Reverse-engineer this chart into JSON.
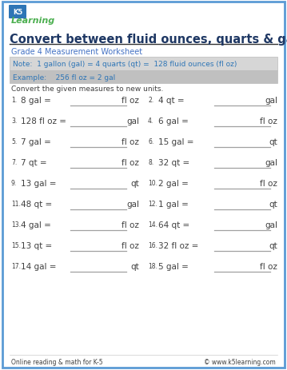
{
  "title": "Convert between fluid ounces, quarts & gallons",
  "subtitle": "Grade 4 Measurement Worksheet",
  "note": "Note:  1 gallon (gal) = 4 quarts (qt) =  128 fluid ounces (fl oz)",
  "example": "Example:    256 fl oz = 2 gal",
  "instruction": "Convert the given measures to new units.",
  "problems": [
    {
      "num": "1.",
      "left": "8 gal =",
      "right_unit": "fl oz"
    },
    {
      "num": "2.",
      "left": "4 qt =",
      "right_unit": "gal"
    },
    {
      "num": "3.",
      "left": "128 fl oz =",
      "right_unit": "gal"
    },
    {
      "num": "4.",
      "left": "6 gal =",
      "right_unit": "fl oz"
    },
    {
      "num": "5.",
      "left": "7 gal =",
      "right_unit": "fl oz"
    },
    {
      "num": "6.",
      "left": "15 gal =",
      "right_unit": "qt"
    },
    {
      "num": "7.",
      "left": "7 qt =",
      "right_unit": "fl oz"
    },
    {
      "num": "8.",
      "left": "32 qt =",
      "right_unit": "gal"
    },
    {
      "num": "9.",
      "left": "13 gal =",
      "right_unit": "qt"
    },
    {
      "num": "10.",
      "left": "2 gal =",
      "right_unit": "fl oz"
    },
    {
      "num": "11.",
      "left": "48 qt =",
      "right_unit": "gal"
    },
    {
      "num": "12.",
      "left": "1 gal =",
      "right_unit": "qt"
    },
    {
      "num": "13.",
      "left": "4 gal =",
      "right_unit": "fl oz"
    },
    {
      "num": "14.",
      "left": "64 qt =",
      "right_unit": "gal"
    },
    {
      "num": "15.",
      "left": "13 qt =",
      "right_unit": "fl oz"
    },
    {
      "num": "16.",
      "left": "32 fl oz =",
      "right_unit": "qt"
    },
    {
      "num": "17.",
      "left": "14 gal =",
      "right_unit": "qt"
    },
    {
      "num": "18.",
      "left": "5 gal =",
      "right_unit": "fl oz"
    }
  ],
  "footer_left": "Online reading & math for K-5",
  "footer_right": "© www.k5learning.com",
  "border_color": "#5b9bd5",
  "title_color": "#1f3864",
  "subtitle_color": "#4472c4",
  "note_color": "#2e75b6",
  "note_bg": "#d6d6d6",
  "example_bg": "#c0c0c0",
  "bg_color": "#ffffff",
  "text_color": "#404040",
  "line_color": "#a0a0a0"
}
